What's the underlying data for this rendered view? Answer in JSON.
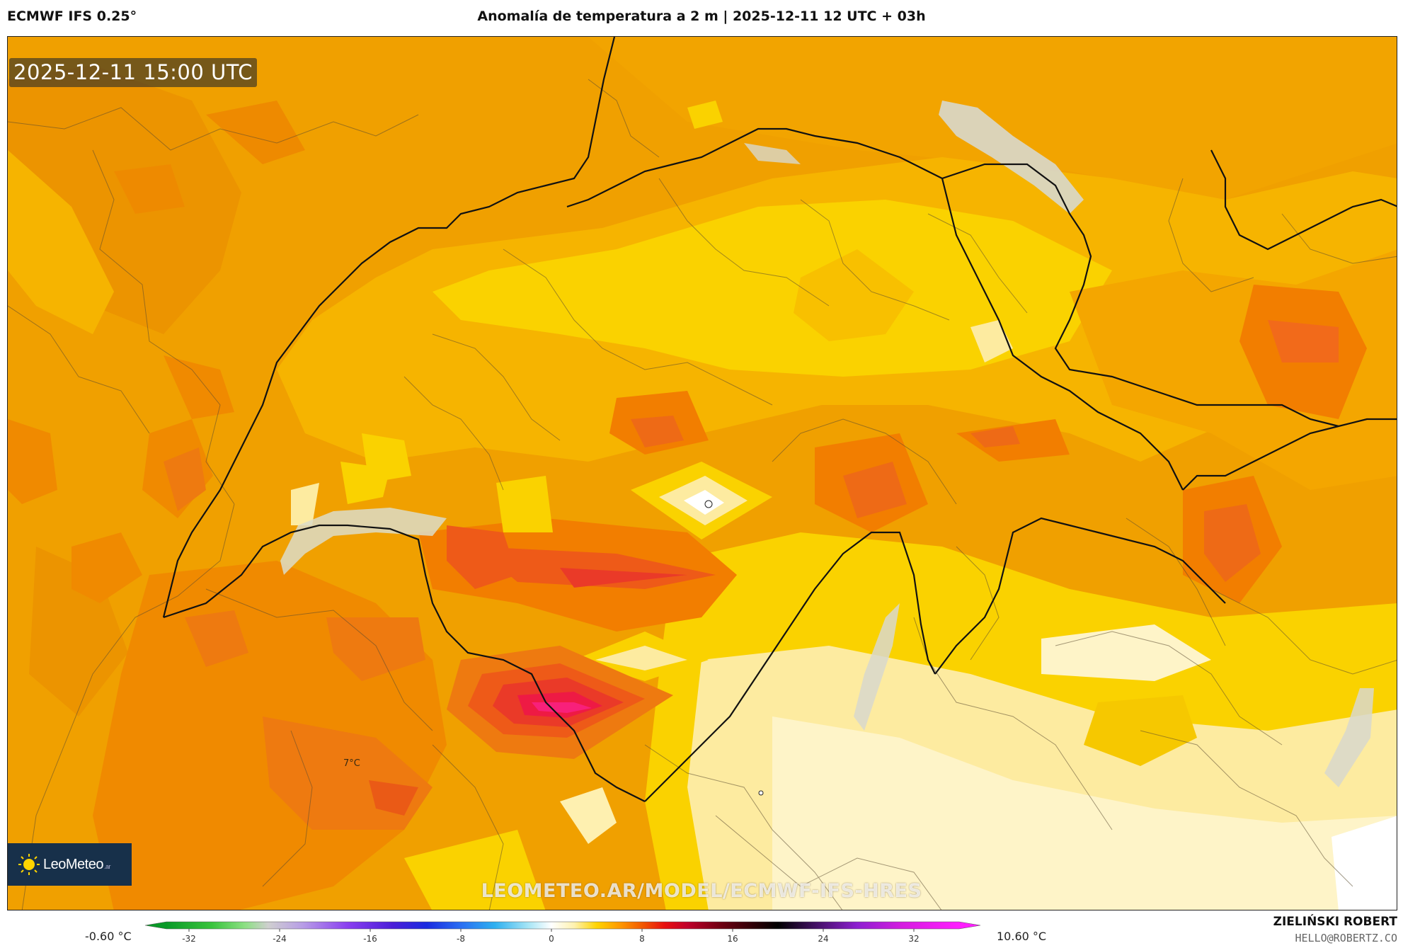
{
  "header": {
    "model": "ECMWF IFS 0.25°",
    "title": "Anomalía de temperatura a 2 m | 2025-12-11 12 UTC + 03h"
  },
  "map": {
    "timestamp": "2025-12-11 15:00 UTC",
    "spot_label": "7°C",
    "watermark": "LEOMETEO.AR/MODEL/ECMWF-IFS-HRES",
    "logo_text": "LeoMeteo",
    "logo_suffix": ".ar"
  },
  "legend": {
    "min_label": "-0.60 °C",
    "max_label": "10.60 °C",
    "ticks": [
      "-32",
      "-24",
      "-16",
      "-8",
      "0",
      "8",
      "16",
      "24",
      "32"
    ],
    "tick_values": [
      -32,
      -24,
      -16,
      -8,
      0,
      8,
      16,
      24,
      32
    ],
    "range": [
      -34,
      36
    ],
    "stops": [
      {
        "v": -34,
        "c": "#0a9a28"
      },
      {
        "v": -30,
        "c": "#39c43c"
      },
      {
        "v": -27,
        "c": "#8ee085"
      },
      {
        "v": -25,
        "c": "#cfcfcf"
      },
      {
        "v": -22,
        "c": "#b89ee6"
      },
      {
        "v": -18,
        "c": "#8a3ff0"
      },
      {
        "v": -14,
        "c": "#4b1ed8"
      },
      {
        "v": -11,
        "c": "#1a2be0"
      },
      {
        "v": -8,
        "c": "#2a6ef2"
      },
      {
        "v": -5,
        "c": "#2eb0f0"
      },
      {
        "v": -2,
        "c": "#a8e6f6"
      },
      {
        "v": 0,
        "c": "#ffffff"
      },
      {
        "v": 2,
        "c": "#fff2b0"
      },
      {
        "v": 4,
        "c": "#ffd400"
      },
      {
        "v": 6,
        "c": "#ff9a00"
      },
      {
        "v": 8,
        "c": "#f25a00"
      },
      {
        "v": 10,
        "c": "#e81010"
      },
      {
        "v": 12,
        "c": "#c0002a"
      },
      {
        "v": 15,
        "c": "#6e0012"
      },
      {
        "v": 18,
        "c": "#2a0006"
      },
      {
        "v": 20,
        "c": "#000000"
      },
      {
        "v": 23,
        "c": "#3c0f5a"
      },
      {
        "v": 27,
        "c": "#8d1fd0"
      },
      {
        "v": 31,
        "c": "#d51de0"
      },
      {
        "v": 36,
        "c": "#ff1eff"
      }
    ]
  },
  "author": {
    "name": "ZIELIŃSKI ROBERT",
    "email": "HELLO@ROBERTZ.CO"
  },
  "colors": {
    "deep_orange": "#f0a000",
    "mid_orange": "#f6b400",
    "yellow": "#fad200",
    "pale_yellow": "#fdeba0",
    "cream": "#fef4c8",
    "red_orange": "#f26a1a",
    "hot_red": "#ee1a44",
    "lake": "#d8d8cc"
  }
}
